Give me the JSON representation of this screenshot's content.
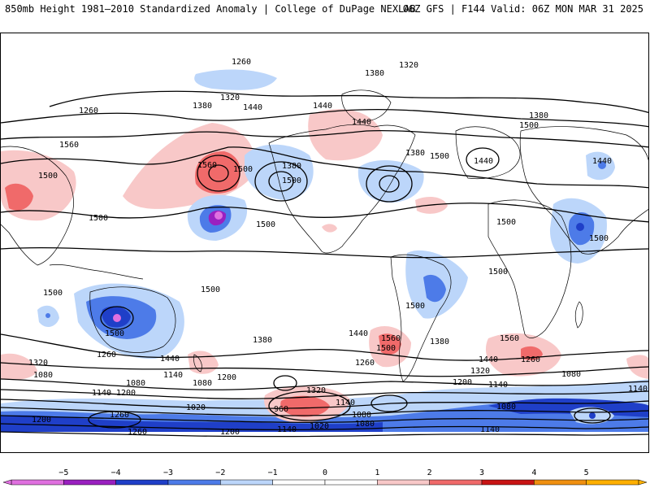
{
  "header": {
    "title": "850mb Height 1981–2010 Standardized Anomaly | College of DuPage NEXLAB",
    "run_info": "06Z GFS | F144 Valid: 06Z MON MAR 31 2025"
  },
  "colors": {
    "neg5": "#e070e0",
    "neg4": "#9a20c0",
    "neg3": "#1f3fc8",
    "neg2": "#4d7be8",
    "neg1": "#bcd6fa",
    "zero": "#ffffff",
    "pos1": "#f8c8c8",
    "pos2": "#f06a6a",
    "pos3": "#c81414",
    "pos4": "#f09010",
    "pos5": "#ffb000",
    "contour": "#000000",
    "coast": "#000000"
  },
  "colorbar": {
    "ticks": [
      "−5",
      "−4",
      "−3",
      "−2",
      "−1",
      "0",
      "1",
      "2",
      "3",
      "4",
      "5"
    ]
  },
  "contour_labels": [
    {
      "text": "1260"
    },
    {
      "text": "1320"
    },
    {
      "text": "1380"
    },
    {
      "text": "1260"
    },
    {
      "text": "1380"
    },
    {
      "text": "1320"
    },
    {
      "text": "1440"
    },
    {
      "text": "1440"
    },
    {
      "text": "1440"
    },
    {
      "text": "1560"
    },
    {
      "text": "1500"
    },
    {
      "text": "1560"
    },
    {
      "text": "1500"
    },
    {
      "text": "1380"
    },
    {
      "text": "1500"
    },
    {
      "text": "1380"
    },
    {
      "text": "1500"
    },
    {
      "text": "1440"
    },
    {
      "text": "1380"
    },
    {
      "text": "1500"
    },
    {
      "text": "1440"
    },
    {
      "text": "1500"
    },
    {
      "text": "1500"
    },
    {
      "text": "1500"
    },
    {
      "text": "1500"
    },
    {
      "text": "1500"
    },
    {
      "text": "1500"
    },
    {
      "text": "1500"
    },
    {
      "text": "1500"
    },
    {
      "text": "1500"
    },
    {
      "text": "1380"
    },
    {
      "text": "1440"
    },
    {
      "text": "1560"
    },
    {
      "text": "1380"
    },
    {
      "text": "1560"
    },
    {
      "text": "1500"
    },
    {
      "text": "1440"
    },
    {
      "text": "1260"
    },
    {
      "text": "1320"
    },
    {
      "text": "1260"
    },
    {
      "text": "1440"
    },
    {
      "text": "1260"
    },
    {
      "text": "1200"
    },
    {
      "text": "1140"
    },
    {
      "text": "1080"
    },
    {
      "text": "1080"
    },
    {
      "text": "1140"
    },
    {
      "text": "1200"
    },
    {
      "text": "1080"
    },
    {
      "text": "1140"
    },
    {
      "text": "1200"
    },
    {
      "text": "1320"
    },
    {
      "text": "1080"
    },
    {
      "text": "1140"
    },
    {
      "text": "1320"
    },
    {
      "text": "1140"
    },
    {
      "text": "1020"
    },
    {
      "text": "960"
    },
    {
      "text": "1080"
    },
    {
      "text": "1080"
    },
    {
      "text": "1200"
    },
    {
      "text": "1260"
    },
    {
      "text": "1200"
    },
    {
      "text": "1140"
    },
    {
      "text": "1020"
    },
    {
      "text": "1080"
    },
    {
      "text": "1140"
    },
    {
      "text": "1260"
    }
  ]
}
